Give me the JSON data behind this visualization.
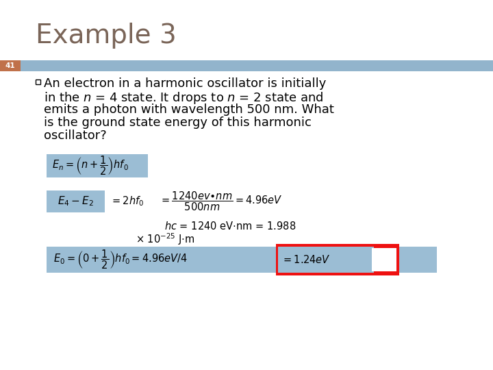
{
  "title": "Example 3",
  "title_color": "#7A6558",
  "title_fontsize": 28,
  "slide_number": "41",
  "slide_number_bg": "#C0714A",
  "slide_number_color": "#FFFFFF",
  "header_bar_color": "#92B4CC",
  "background_color": "#FFFFFF",
  "bullet_lines": [
    "An electron in a harmonic oscillator is initially",
    "in the $n$ = 4 state. It drops to $n$ = 2 state and",
    "emits a photon with wavelength 500 nm. What",
    "is the ground state energy of this harmonic",
    "oscillator?"
  ],
  "formula1_bg": "#9BBDD4",
  "formula2a_bg": "#9BBDD4",
  "formula4_bg": "#9BBDD4",
  "formula4_result_box_color": "#EE1111",
  "formula4_result_bg": "#9BBDD4",
  "bullet_fontsize": 13,
  "formula_fontsize": 11
}
